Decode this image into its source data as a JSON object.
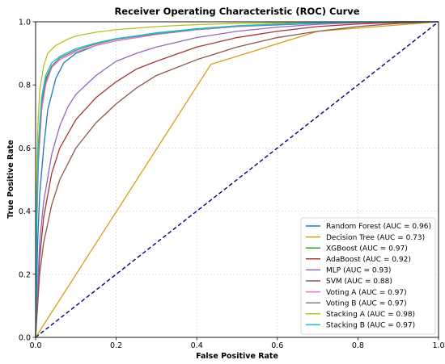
{
  "chart_data": {
    "type": "line",
    "title": "Receiver Operating Characteristic (ROC) Curve",
    "xlabel": "False Positive Rate",
    "ylabel": "True Positive Rate",
    "xlim": [
      0,
      1
    ],
    "ylim": [
      0,
      1
    ],
    "xticks": [
      "0.0",
      "0.2",
      "0.4",
      "0.6",
      "0.8",
      "1.0"
    ],
    "yticks": [
      "0.0",
      "0.2",
      "0.4",
      "0.6",
      "0.8",
      "1.0"
    ],
    "grid": true,
    "legend_position": "bottom-right",
    "reference_line": {
      "x": [
        0,
        1
      ],
      "y": [
        0,
        1
      ],
      "color": "#000080",
      "style": "dashed"
    },
    "series": [
      {
        "name": "Random Forest (AUC = 0.96)",
        "color": "#1f77b4",
        "x": [
          0,
          0.005,
          0.01,
          0.02,
          0.03,
          0.05,
          0.07,
          0.1,
          0.15,
          0.2,
          0.3,
          0.4,
          0.5,
          0.6,
          0.7,
          0.8,
          0.9,
          1.0
        ],
        "y": [
          0,
          0.3,
          0.45,
          0.6,
          0.72,
          0.82,
          0.87,
          0.9,
          0.925,
          0.94,
          0.96,
          0.975,
          0.985,
          0.99,
          0.995,
          0.998,
          1.0,
          1.0
        ]
      },
      {
        "name": "Decision Tree (AUC = 0.73)",
        "color": "#d4a017",
        "x": [
          0,
          0.435,
          0.7,
          1.0
        ],
        "y": [
          0,
          0.865,
          0.97,
          1.0
        ]
      },
      {
        "name": "XGBoost (AUC = 0.97)",
        "color": "#2ca02c",
        "x": [
          0,
          0.003,
          0.007,
          0.015,
          0.025,
          0.04,
          0.06,
          0.1,
          0.15,
          0.2,
          0.3,
          0.4,
          0.5,
          0.6,
          0.7,
          0.8,
          0.9,
          1.0
        ],
        "y": [
          0,
          0.4,
          0.6,
          0.75,
          0.82,
          0.86,
          0.885,
          0.91,
          0.93,
          0.945,
          0.965,
          0.978,
          0.987,
          0.993,
          0.997,
          0.999,
          1.0,
          1.0
        ]
      },
      {
        "name": "AdaBoost (AUC = 0.92)",
        "color": "#a83232",
        "x": [
          0,
          0.01,
          0.02,
          0.04,
          0.06,
          0.1,
          0.15,
          0.2,
          0.25,
          0.3,
          0.4,
          0.5,
          0.6,
          0.7,
          0.8,
          0.9,
          1.0
        ],
        "y": [
          0,
          0.25,
          0.38,
          0.52,
          0.6,
          0.69,
          0.76,
          0.81,
          0.85,
          0.875,
          0.92,
          0.95,
          0.97,
          0.985,
          0.993,
          0.998,
          1.0
        ]
      },
      {
        "name": "MLP (AUC = 0.93)",
        "color": "#9467bd",
        "x": [
          0,
          0.01,
          0.02,
          0.04,
          0.06,
          0.08,
          0.1,
          0.15,
          0.2,
          0.25,
          0.3,
          0.4,
          0.5,
          0.6,
          0.7,
          0.8,
          0.9,
          1.0
        ],
        "y": [
          0,
          0.3,
          0.43,
          0.58,
          0.67,
          0.73,
          0.77,
          0.83,
          0.875,
          0.9,
          0.92,
          0.95,
          0.97,
          0.983,
          0.992,
          0.997,
          1.0,
          1.0
        ]
      },
      {
        "name": "SVM (AUC = 0.88)",
        "color": "#8c564b",
        "x": [
          0,
          0.01,
          0.02,
          0.04,
          0.06,
          0.1,
          0.15,
          0.2,
          0.25,
          0.3,
          0.4,
          0.5,
          0.6,
          0.7,
          0.8,
          0.9,
          1.0
        ],
        "y": [
          0,
          0.2,
          0.3,
          0.42,
          0.5,
          0.6,
          0.68,
          0.74,
          0.79,
          0.83,
          0.88,
          0.92,
          0.95,
          0.97,
          0.985,
          0.995,
          1.0
        ]
      },
      {
        "name": "Voting A (AUC = 0.97)",
        "color": "#e377c2",
        "x": [
          0,
          0.003,
          0.007,
          0.015,
          0.025,
          0.04,
          0.06,
          0.1,
          0.15,
          0.2,
          0.3,
          0.4,
          0.5,
          0.6,
          0.7,
          0.8,
          0.9,
          1.0
        ],
        "y": [
          0,
          0.35,
          0.55,
          0.72,
          0.8,
          0.855,
          0.88,
          0.905,
          0.925,
          0.94,
          0.96,
          0.975,
          0.985,
          0.992,
          0.996,
          0.999,
          1.0,
          1.0
        ]
      },
      {
        "name": "Voting B (AUC = 0.97)",
        "color": "#7f7f7f",
        "x": [
          0,
          0.003,
          0.007,
          0.015,
          0.025,
          0.04,
          0.06,
          0.1,
          0.15,
          0.2,
          0.3,
          0.4,
          0.5,
          0.6,
          0.7,
          0.8,
          0.9,
          1.0
        ],
        "y": [
          0,
          0.38,
          0.58,
          0.74,
          0.81,
          0.86,
          0.885,
          0.91,
          0.93,
          0.945,
          0.962,
          0.976,
          0.986,
          0.993,
          0.997,
          0.999,
          1.0,
          1.0
        ]
      },
      {
        "name": "Stacking A (AUC = 0.98)",
        "color": "#bcbd22",
        "x": [
          0,
          0.002,
          0.005,
          0.01,
          0.02,
          0.03,
          0.05,
          0.08,
          0.1,
          0.15,
          0.2,
          0.3,
          0.4,
          0.5,
          0.6,
          0.7,
          0.8,
          0.9,
          1.0
        ],
        "y": [
          0,
          0.45,
          0.65,
          0.78,
          0.86,
          0.9,
          0.925,
          0.945,
          0.955,
          0.967,
          0.975,
          0.985,
          0.991,
          0.995,
          0.997,
          0.999,
          1.0,
          1.0,
          1.0
        ]
      },
      {
        "name": "Stacking B (AUC = 0.97)",
        "color": "#17becf",
        "x": [
          0,
          0.003,
          0.007,
          0.015,
          0.025,
          0.04,
          0.06,
          0.1,
          0.15,
          0.2,
          0.3,
          0.4,
          0.5,
          0.6,
          0.7,
          0.8,
          0.9,
          1.0
        ],
        "y": [
          0,
          0.42,
          0.62,
          0.76,
          0.83,
          0.87,
          0.89,
          0.915,
          0.933,
          0.947,
          0.964,
          0.977,
          0.987,
          0.993,
          0.997,
          0.999,
          1.0,
          1.0
        ]
      }
    ]
  }
}
